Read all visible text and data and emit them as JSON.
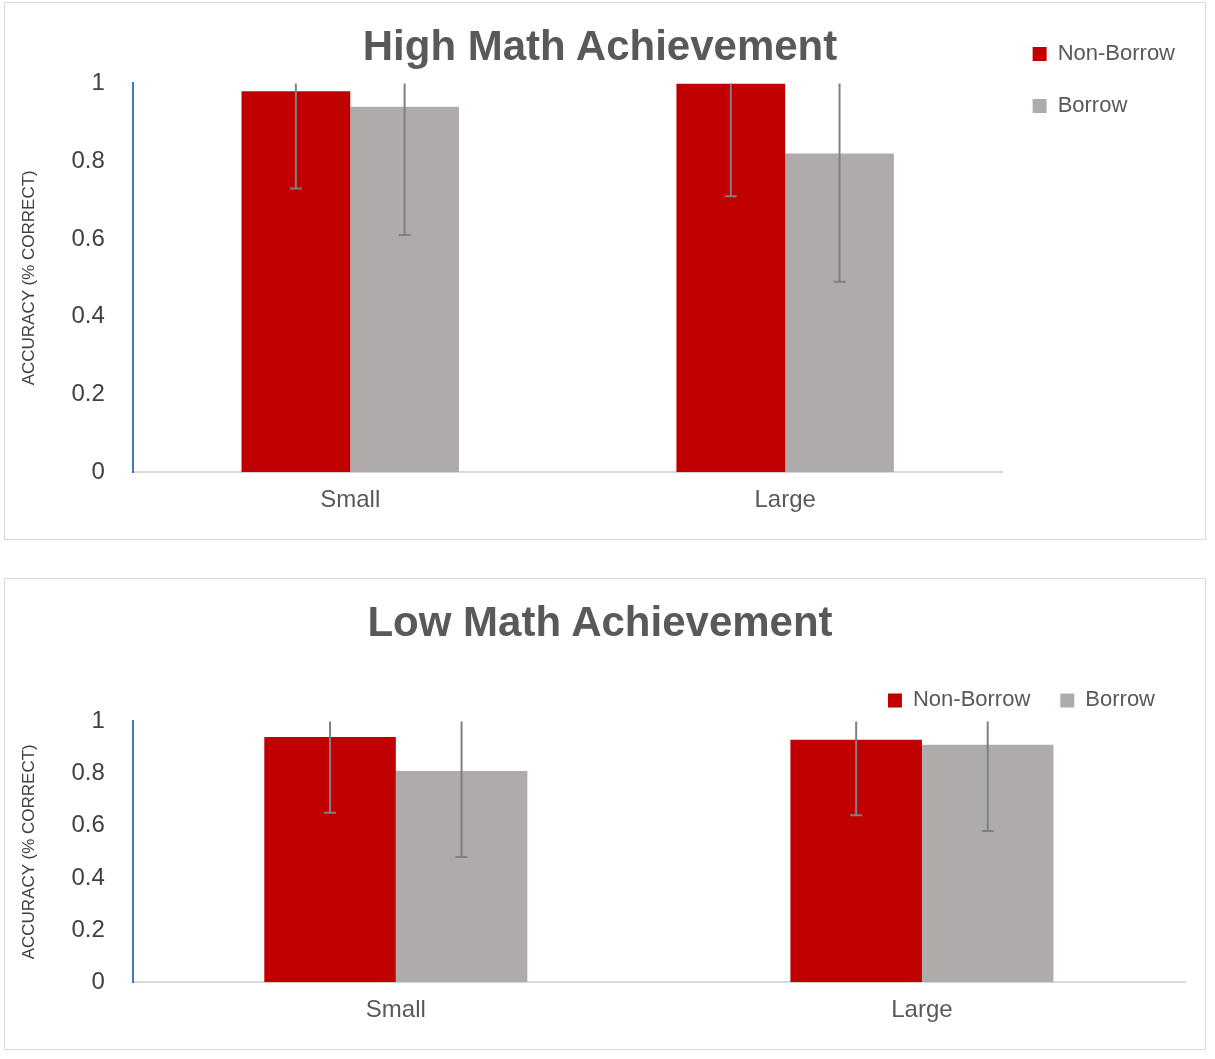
{
  "chart_data": [
    {
      "type": "bar",
      "title": "High Math Achievement",
      "ylabel": "ACCURACY (% CORRECT)",
      "categories": [
        "Small",
        "Large"
      ],
      "series": [
        {
          "name": "Non-Borrow",
          "color": "#c00000",
          "values": [
            0.98,
            1.0
          ],
          "errors": [
            [
              0.73,
              1
            ],
            [
              0.71,
              1
            ]
          ]
        },
        {
          "name": "Borrow",
          "color": "#afabab",
          "values": [
            0.94,
            0.82
          ],
          "errors": [
            [
              0.61,
              1
            ],
            [
              0.49,
              1
            ]
          ]
        }
      ],
      "ylim": [
        0,
        1
      ],
      "yticks": [
        0,
        0.2,
        0.4,
        0.6,
        0.8,
        1
      ],
      "grid": false,
      "legend": "right"
    },
    {
      "type": "bar",
      "title": "Low Math Achievement",
      "ylabel": "ACCURACY (% CORRECT)",
      "categories": [
        "Small",
        "Large"
      ],
      "series": [
        {
          "name": "Non-Borrow",
          "color": "#c00000",
          "values": [
            0.94,
            0.93
          ],
          "errors": [
            [
              0.65,
              1
            ],
            [
              0.64,
              1
            ]
          ]
        },
        {
          "name": "Borrow",
          "color": "#afabab",
          "values": [
            0.81,
            0.91
          ],
          "errors": [
            [
              0.48,
              1
            ],
            [
              0.58,
              1
            ]
          ]
        }
      ],
      "ylim": [
        0,
        1
      ],
      "yticks": [
        0,
        0.2,
        0.4,
        0.6,
        0.8,
        1
      ],
      "grid": false,
      "legend": "top right"
    }
  ]
}
